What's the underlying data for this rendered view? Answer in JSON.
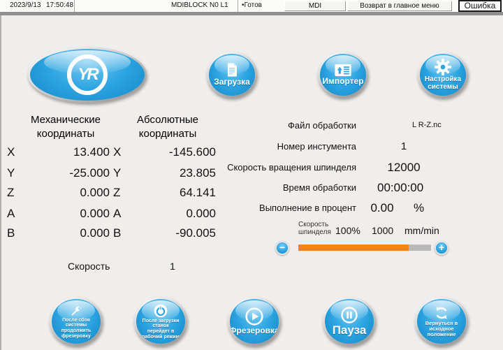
{
  "titlebar": {
    "date": "2023/9/13",
    "time": "17:50:48",
    "mode_block": "MDIBLOCK N0 L1",
    "status_dot": "•",
    "status": "Готов",
    "mdi": "MDI",
    "return_menu": "Возврат в главное меню",
    "error": "Ошибка"
  },
  "logo": {
    "monogram": "YR"
  },
  "top_buttons": {
    "load_label": "Загрузка",
    "import_label": "Импортер",
    "settings_label": "Настройка\nсистемы"
  },
  "coordinates": {
    "mechanical_title": "Механические\nкоординаты",
    "absolute_title": "Абсолютные\nкоординаты",
    "axes": [
      "X",
      "Y",
      "Z",
      "A",
      "B"
    ],
    "mechanical": [
      "13.400",
      "-25.000",
      "0.000",
      "0.000",
      "0.000"
    ],
    "absolute": [
      "-145.600",
      "23.805",
      "64.141",
      "0.000",
      "-90.005"
    ],
    "speed_label": "Скорость",
    "speed_value": "1"
  },
  "job_info": {
    "file_label": "Файл обработки",
    "file_value": "L R-Z.nc",
    "tool_label": "Номер инстумента",
    "tool_value": "1",
    "spindle_label": "Скорость вращения шпинделя",
    "spindle_value": "12000",
    "time_label": "Время обработки",
    "time_value": "00:00:00",
    "progress_label": "Выполнение в процент",
    "progress_value": "0.00",
    "progress_unit": "%"
  },
  "spindle_slider": {
    "label": "Скорость\nшпинделя",
    "override_percent": "100%",
    "feed_value": "1000",
    "feed_unit": "mm/min",
    "minus_glyph": "−",
    "plus_glyph": "+",
    "fill_percent": 83
  },
  "bottom_buttons": {
    "resume_label": "После сбоя системы\nпродолжить\nфрезеровку",
    "workmode_label": "После загрузки станок\nперейдет в\nрабочий режим",
    "mill_label": "Фрезеровка",
    "pause_label": "Пауза",
    "home_label": "Вернуться в\nисходное\nположение"
  },
  "colors": {
    "button_blue": "#2da5e2",
    "orange": "#f08519",
    "track_gray": "#b9b9b9"
  }
}
